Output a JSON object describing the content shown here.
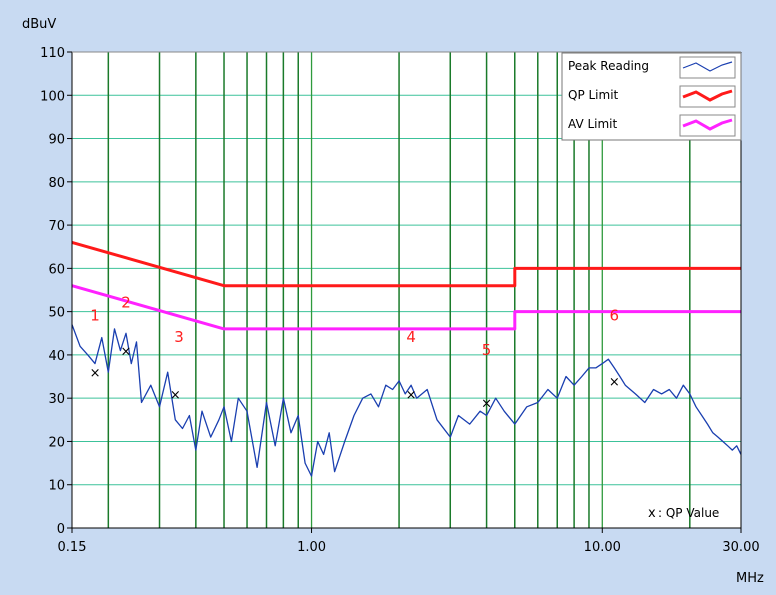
{
  "colors": {
    "background": "#c8daf2",
    "plot_bg": "#ffffff",
    "grid_major": "#2e9a3c",
    "grid_minor": "#1a7a2a",
    "grid_horizontal": "#3cc29a",
    "peak": "#1a3fb0",
    "qp_limit": "#ff1a1a",
    "av_limit": "#ff22ff",
    "qp_marker": "#ff3030"
  },
  "chart_data": {
    "type": "line",
    "ylabel": "dBuV",
    "xlabel": "MHz",
    "x_scale": "log",
    "xlim": [
      0.15,
      30.0
    ],
    "ylim": [
      0,
      110
    ],
    "x_tick_labels": [
      "0.15",
      "1.00",
      "10.00",
      "30.00"
    ],
    "x_ticks": [
      0.15,
      1.0,
      10.0,
      30.0
    ],
    "y_ticks": [
      0,
      10,
      20,
      30,
      40,
      50,
      60,
      70,
      80,
      90,
      100,
      110
    ],
    "y_tick_labels": [
      "0",
      "10",
      "20",
      "30",
      "40",
      "50",
      "60",
      "70",
      "80",
      "90",
      "100",
      "110"
    ],
    "vertical_grid": [
      0.2,
      0.3,
      0.4,
      0.5,
      0.6,
      0.7,
      0.8,
      0.9,
      1.0,
      2.0,
      3.0,
      4.0,
      5.0,
      6.0,
      7.0,
      8.0,
      9.0,
      10.0,
      20.0
    ],
    "legend_placement": "top-right",
    "legend": [
      "Peak Reading",
      "QP Limit",
      "AV Limit"
    ],
    "series": [
      {
        "name": "Peak Reading",
        "color": "#1a3fb0",
        "x": [
          0.15,
          0.16,
          0.17,
          0.18,
          0.19,
          0.2,
          0.21,
          0.22,
          0.23,
          0.24,
          0.25,
          0.26,
          0.28,
          0.3,
          0.32,
          0.34,
          0.36,
          0.38,
          0.4,
          0.42,
          0.45,
          0.48,
          0.5,
          0.53,
          0.56,
          0.6,
          0.65,
          0.7,
          0.75,
          0.8,
          0.85,
          0.9,
          0.95,
          1.0,
          1.05,
          1.1,
          1.15,
          1.2,
          1.3,
          1.4,
          1.5,
          1.6,
          1.7,
          1.8,
          1.9,
          2.0,
          2.1,
          2.2,
          2.3,
          2.5,
          2.7,
          3.0,
          3.2,
          3.5,
          3.8,
          4.0,
          4.3,
          4.6,
          5.0,
          5.5,
          6.0,
          6.5,
          7.0,
          7.5,
          8.0,
          8.5,
          9.0,
          9.5,
          10.0,
          10.5,
          11.0,
          11.5,
          12.0,
          13.0,
          14.0,
          15.0,
          16.0,
          17.0,
          18.0,
          19.0,
          20.0,
          21.0,
          22.0,
          23.0,
          24.0,
          25.0,
          26.0,
          27.0,
          28.0,
          29.0,
          30.0
        ],
        "values": [
          47,
          42,
          40,
          38,
          44,
          36,
          46,
          41,
          45,
          38,
          43,
          29,
          33,
          28,
          36,
          25,
          23,
          26,
          18,
          27,
          21,
          25,
          28,
          20,
          30,
          27,
          14,
          29,
          19,
          30,
          22,
          26,
          15,
          12,
          20,
          17,
          22,
          13,
          20,
          26,
          30,
          31,
          28,
          33,
          32,
          34,
          31,
          33,
          30,
          32,
          25,
          21,
          26,
          24,
          27,
          26,
          30,
          27,
          24,
          28,
          29,
          32,
          30,
          35,
          33,
          35,
          37,
          37,
          38,
          39,
          37,
          35,
          33,
          31,
          29,
          32,
          31,
          32,
          30,
          33,
          31,
          28,
          26,
          24,
          22,
          21,
          20,
          19,
          18,
          19,
          17
        ]
      },
      {
        "name": "QP Limit",
        "color": "#ff1a1a",
        "x": [
          0.15,
          0.5,
          5.0,
          5.0,
          30.0
        ],
        "values": [
          66,
          56,
          56,
          60,
          60
        ]
      },
      {
        "name": "AV Limit",
        "color": "#ff22ff",
        "x": [
          0.15,
          0.5,
          5.0,
          5.0,
          30.0
        ],
        "values": [
          56,
          46,
          46,
          50,
          50
        ]
      }
    ],
    "qp_points": {
      "legend_label": "x : QP Value",
      "x": [
        0.18,
        0.23,
        0.34,
        2.2,
        4.0,
        11.0
      ],
      "values": [
        36,
        41,
        31,
        31,
        29,
        34
      ]
    },
    "annotations": [
      {
        "text": "1",
        "x": 0.18,
        "y": 48
      },
      {
        "text": "2",
        "x": 0.23,
        "y": 51
      },
      {
        "text": "3",
        "x": 0.35,
        "y": 43
      },
      {
        "text": "4",
        "x": 2.2,
        "y": 43
      },
      {
        "text": "5",
        "x": 4.0,
        "y": 40
      },
      {
        "text": "6",
        "x": 11.0,
        "y": 48
      }
    ]
  }
}
